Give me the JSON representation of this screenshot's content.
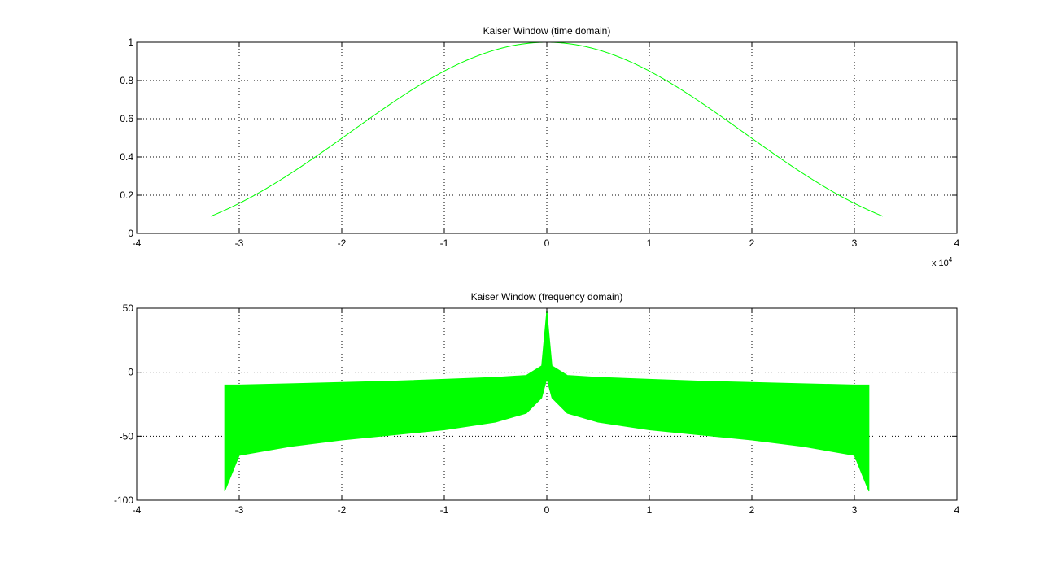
{
  "chart_data": [
    {
      "type": "line",
      "title": "Kaiser Window (time domain)",
      "xlabel": "",
      "ylabel": "",
      "xlim": [
        -4,
        4
      ],
      "ylim": [
        0,
        1
      ],
      "x_tick_labels": [
        "-4",
        "-3",
        "-2",
        "-1",
        "0",
        "1",
        "2",
        "3",
        "4"
      ],
      "y_tick_labels": [
        "0",
        "0.2",
        "0.4",
        "0.6",
        "0.8",
        "1"
      ],
      "x_multiplier": {
        "base": "x 10",
        "exponent": "4"
      },
      "grid": true,
      "color": "#00ff00",
      "series": [
        {
          "x": [
            -3.2768,
            -3.0,
            -2.5,
            -2.0,
            -1.5,
            -1.0,
            -0.5,
            0.0,
            0.5,
            1.0,
            1.5,
            2.0,
            2.5,
            3.0,
            3.2768
          ],
          "y": [
            0.09,
            0.15,
            0.31,
            0.5,
            0.69,
            0.85,
            0.96,
            1.0,
            0.96,
            0.85,
            0.69,
            0.5,
            0.31,
            0.15,
            0.09
          ]
        }
      ]
    },
    {
      "type": "area",
      "title": "Kaiser Window (frequency domain)",
      "xlabel": "",
      "ylabel": "",
      "xlim": [
        -4,
        4
      ],
      "ylim": [
        -100,
        50
      ],
      "x_tick_labels": [
        "-4",
        "-3",
        "-2",
        "-1",
        "0",
        "1",
        "2",
        "3",
        "4"
      ],
      "y_tick_labels": [
        "-100",
        "-50",
        "0",
        "50"
      ],
      "grid": true,
      "color": "#00ff00",
      "series": [
        {
          "x": [
            -3.1416,
            -3.0,
            -2.5,
            -2.0,
            -1.5,
            -1.0,
            -0.5,
            -0.2,
            -0.05,
            0.0,
            0.05,
            0.2,
            0.5,
            1.0,
            1.5,
            2.0,
            2.5,
            3.0,
            3.1416
          ],
          "upper": [
            -10,
            -10,
            -9,
            -8,
            -7,
            -5.5,
            -4,
            -2.5,
            5,
            48,
            5,
            -2.5,
            -4,
            -5.5,
            -7,
            -8,
            -9,
            -10,
            -10
          ],
          "lower": [
            -93,
            -65,
            -58,
            -53,
            -49,
            -45,
            -39,
            -32,
            -20,
            -5,
            -20,
            -32,
            -39,
            -45,
            -49,
            -53,
            -58,
            -65,
            -93
          ]
        }
      ]
    }
  ]
}
